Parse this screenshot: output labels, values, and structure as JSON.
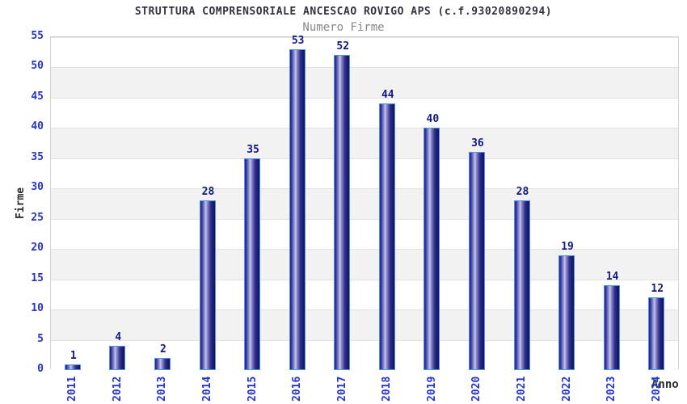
{
  "chart_data": {
    "type": "bar",
    "title": "STRUTTURA COMPRENSORIALE ANCESCAO ROVIGO APS (c.f.93020890294)",
    "subtitle": "Numero Firme",
    "xlabel": "Anno",
    "ylabel": "Firme",
    "categories": [
      "2011",
      "2012",
      "2013",
      "2014",
      "2015",
      "2016",
      "2017",
      "2018",
      "2019",
      "2020",
      "2021",
      "2022",
      "2023",
      "2024"
    ],
    "values": [
      1,
      4,
      2,
      28,
      35,
      53,
      52,
      44,
      40,
      36,
      28,
      19,
      14,
      12
    ],
    "ylim": [
      0,
      55
    ],
    "ytick_step": 5,
    "grid": "alternating-horizontal-bands",
    "legend": null,
    "bar_labels_shown": true
  },
  "colors": {
    "title": "#333340",
    "subtitle": "#878787",
    "tick_labels": "#2433cc",
    "value_labels": "#10197f",
    "axis_titles": "#2b2b2b",
    "plot_border": "#d4d4d4",
    "band_gray": "#f2f2f2",
    "band_line": "#e2e2e2",
    "bar_border": "#4f94e3",
    "bar_gradient": [
      "#23238c",
      "#32329e",
      "#9c9cd6",
      "#c6c6ea",
      "#9090cc",
      "#30308f",
      "#1b1b70",
      "#15155e"
    ]
  }
}
